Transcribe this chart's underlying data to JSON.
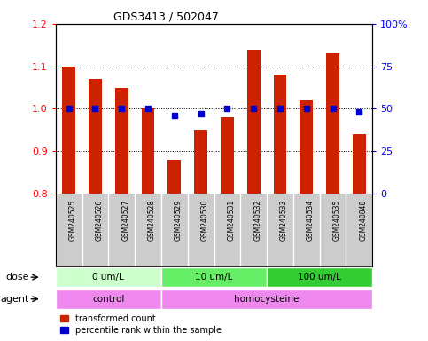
{
  "title": "GDS3413 / 502047",
  "samples": [
    "GSM240525",
    "GSM240526",
    "GSM240527",
    "GSM240528",
    "GSM240529",
    "GSM240530",
    "GSM240531",
    "GSM240532",
    "GSM240533",
    "GSM240534",
    "GSM240535",
    "GSM240848"
  ],
  "red_values": [
    1.1,
    1.07,
    1.05,
    1.0,
    0.88,
    0.95,
    0.98,
    1.14,
    1.08,
    1.02,
    1.13,
    0.94
  ],
  "blue_values": [
    50,
    50,
    50,
    50,
    46,
    47,
    50,
    50,
    50,
    50,
    50,
    48
  ],
  "ylim_left": [
    0.8,
    1.2
  ],
  "ylim_right": [
    0,
    100
  ],
  "yticks_left": [
    0.8,
    0.9,
    1.0,
    1.1,
    1.2
  ],
  "yticks_right": [
    0,
    25,
    50,
    75,
    100
  ],
  "ytick_labels_right": [
    "0",
    "25",
    "50",
    "75",
    "100%"
  ],
  "bar_color": "#cc2200",
  "dot_color": "#0000cc",
  "bg_color": "#ffffff",
  "label_bg_color": "#cccccc",
  "dose_colors": [
    "#ccffcc",
    "#66ee66",
    "#33cc33"
  ],
  "dose_labels": [
    "0 um/L",
    "10 um/L",
    "100 um/L"
  ],
  "dose_starts": [
    0,
    4,
    8
  ],
  "dose_ends": [
    4,
    8,
    12
  ],
  "agent_colors": [
    "#ee88ee",
    "#ee88ee"
  ],
  "agent_labels": [
    "control",
    "homocysteine"
  ],
  "agent_starts": [
    0,
    4
  ],
  "agent_ends": [
    4,
    12
  ]
}
